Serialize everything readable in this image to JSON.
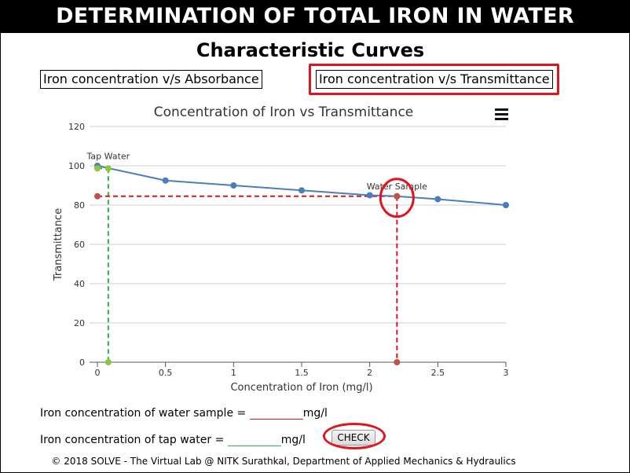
{
  "header": {
    "title": "DETERMINATION OF TOTAL IRON IN WATER"
  },
  "section": {
    "title": "Characteristic Curves"
  },
  "tabs": [
    {
      "label": "Iron concentration v/s Absorbance",
      "active": false
    },
    {
      "label": "Iron concentration v/s Transmittance",
      "active": true
    }
  ],
  "chart_menu_icon": "hamburger-menu-icon",
  "chart_data": {
    "type": "line",
    "title": "Concentration of Iron vs Transmittance",
    "xlabel": "Concentration of Iron (mg/l)",
    "ylabel": "Transmittance",
    "xlim": [
      0,
      3
    ],
    "ylim": [
      0,
      120
    ],
    "xticks": [
      "0",
      "0.5",
      "1",
      "1.5",
      "2",
      "2.5",
      "3"
    ],
    "yticks": [
      "0",
      "20",
      "40",
      "60",
      "80",
      "100",
      "120"
    ],
    "grid": true,
    "series": [
      {
        "x": [
          0,
          0.5,
          1,
          1.5,
          2,
          2.2,
          2.5,
          3
        ],
        "y": [
          100,
          92.5,
          90,
          87.5,
          85,
          84.5,
          83,
          80
        ],
        "color": "#4a7ebb"
      }
    ],
    "markers": [
      {
        "label": "Tap Water",
        "x": 0.08,
        "y": 98.7,
        "color": "#2fb24a"
      },
      {
        "label": "Water Sample",
        "x": 2.2,
        "y": 84.5,
        "color": "#e0141e"
      }
    ]
  },
  "form": {
    "sample_label": "Iron concentration of water sample =",
    "sample_unit": "mg/l",
    "sample_value": "",
    "tap_label": "Iron concentration of tap water =",
    "tap_unit": "mg/l",
    "tap_value": "",
    "check_label": "CHECK"
  },
  "footer": {
    "text": "© 2018 SOLVE - The Virtual Lab @ NITK Surathkal, Department of Applied Mechanics & Hydraulics"
  }
}
